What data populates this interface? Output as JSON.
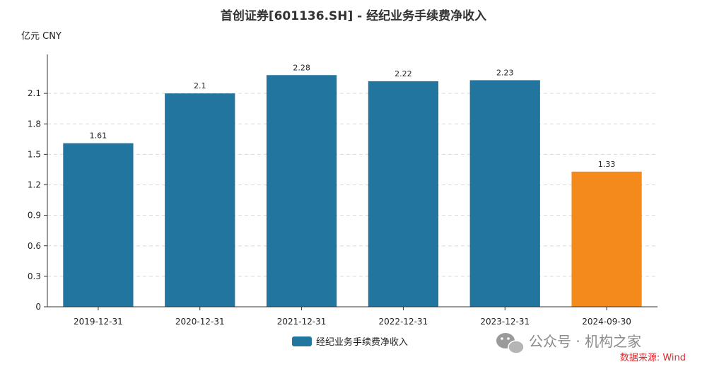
{
  "chart_data": {
    "type": "bar",
    "title": "首创证券[601136.SH] - 经纪业务手续费净收入",
    "unit_label": "亿元  CNY",
    "categories": [
      "2019-12-31",
      "2020-12-31",
      "2021-12-31",
      "2022-12-31",
      "2023-12-31",
      "2024-09-30"
    ],
    "values": [
      1.61,
      2.1,
      2.28,
      2.22,
      2.23,
      1.33
    ],
    "value_labels": [
      "1.61",
      "2.1",
      "2.28",
      "2.22",
      "2.23",
      "1.33"
    ],
    "bar_colors": [
      "#21759f",
      "#21759f",
      "#21759f",
      "#21759f",
      "#21759f",
      "#f48a1c"
    ],
    "yticks": [
      "0",
      "0.3",
      "0.6",
      "0.9",
      "1.2",
      "1.5",
      "1.8",
      "2.1"
    ],
    "ylim": [
      0,
      2.4
    ],
    "grid": "horizontal-dashed",
    "legend": {
      "label": "经纪业务手续费净收入",
      "color": "#21759f",
      "placement": "bottom-center"
    }
  },
  "watermark": {
    "text": "公众号 · 机构之家",
    "icon": "wechat-icon"
  },
  "source": "数据来源: Wind"
}
